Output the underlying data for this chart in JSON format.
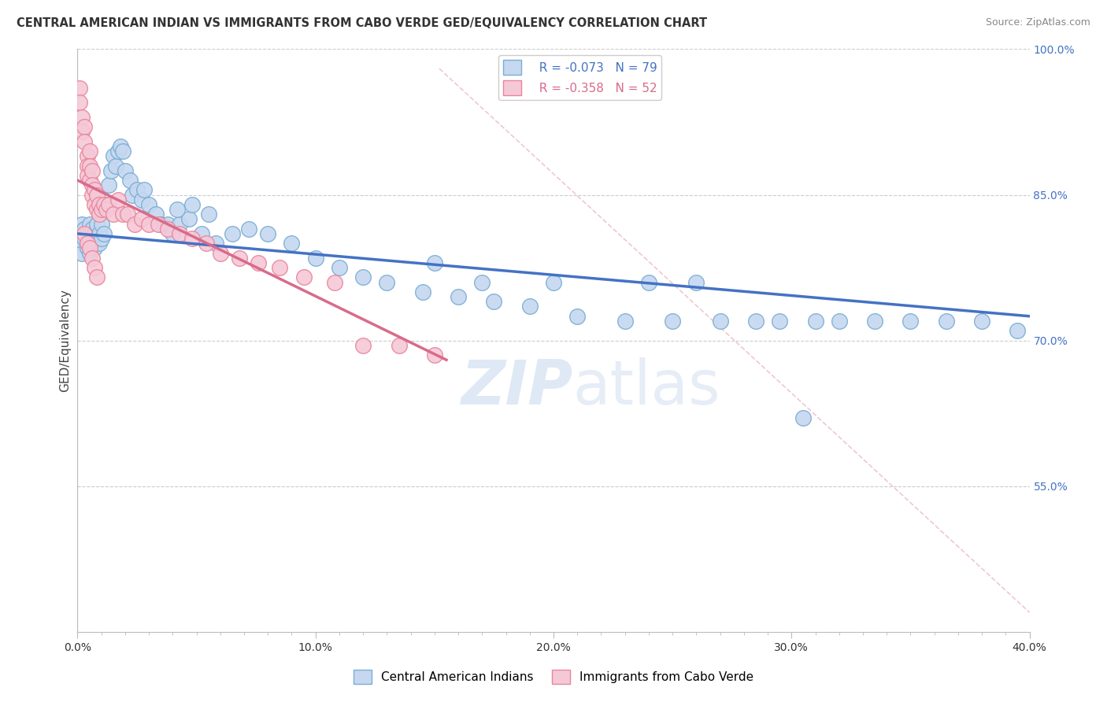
{
  "title": "CENTRAL AMERICAN INDIAN VS IMMIGRANTS FROM CABO VERDE GED/EQUIVALENCY CORRELATION CHART",
  "source": "Source: ZipAtlas.com",
  "ylabel_label": "GED/Equivalency",
  "legend_labels": [
    "Central American Indians",
    "Immigrants from Cabo Verde"
  ],
  "legend_r_blue": "R = -0.073",
  "legend_n_blue": "N = 79",
  "legend_r_pink": "R = -0.358",
  "legend_n_pink": "N = 52",
  "blue_color": "#c5d8f0",
  "blue_edge": "#7aadd4",
  "pink_color": "#f5c8d8",
  "pink_edge": "#e8869a",
  "blue_line_color": "#4472c4",
  "pink_line_color": "#d96b8a",
  "diag_line_color": "#e8b0c0",
  "watermark_color": "#c0d4ec",
  "x_min": 0.0,
  "x_max": 0.4,
  "y_min": 0.4,
  "y_max": 1.0,
  "blue_x": [
    0.001,
    0.001,
    0.002,
    0.002,
    0.003,
    0.003,
    0.004,
    0.004,
    0.005,
    0.005,
    0.005,
    0.006,
    0.006,
    0.007,
    0.007,
    0.008,
    0.008,
    0.009,
    0.009,
    0.01,
    0.01,
    0.011,
    0.012,
    0.013,
    0.014,
    0.015,
    0.016,
    0.017,
    0.018,
    0.019,
    0.02,
    0.022,
    0.023,
    0.025,
    0.027,
    0.028,
    0.03,
    0.033,
    0.035,
    0.038,
    0.04,
    0.043,
    0.047,
    0.052,
    0.058,
    0.065,
    0.072,
    0.08,
    0.09,
    0.1,
    0.11,
    0.12,
    0.13,
    0.145,
    0.16,
    0.175,
    0.19,
    0.21,
    0.23,
    0.25,
    0.27,
    0.285,
    0.295,
    0.31,
    0.32,
    0.335,
    0.35,
    0.365,
    0.38,
    0.395,
    0.055,
    0.048,
    0.042,
    0.15,
    0.17,
    0.2,
    0.24,
    0.26,
    0.305
  ],
  "blue_y": [
    0.8,
    0.81,
    0.82,
    0.79,
    0.805,
    0.815,
    0.795,
    0.81,
    0.8,
    0.79,
    0.82,
    0.8,
    0.815,
    0.795,
    0.81,
    0.82,
    0.805,
    0.8,
    0.81,
    0.82,
    0.805,
    0.81,
    0.84,
    0.86,
    0.875,
    0.89,
    0.88,
    0.895,
    0.9,
    0.895,
    0.875,
    0.865,
    0.85,
    0.855,
    0.845,
    0.855,
    0.84,
    0.83,
    0.82,
    0.82,
    0.81,
    0.82,
    0.825,
    0.81,
    0.8,
    0.81,
    0.815,
    0.81,
    0.8,
    0.785,
    0.775,
    0.765,
    0.76,
    0.75,
    0.745,
    0.74,
    0.735,
    0.725,
    0.72,
    0.72,
    0.72,
    0.72,
    0.72,
    0.72,
    0.72,
    0.72,
    0.72,
    0.72,
    0.72,
    0.71,
    0.83,
    0.84,
    0.835,
    0.78,
    0.76,
    0.76,
    0.76,
    0.76,
    0.62
  ],
  "pink_x": [
    0.001,
    0.001,
    0.002,
    0.002,
    0.003,
    0.003,
    0.004,
    0.004,
    0.004,
    0.005,
    0.005,
    0.005,
    0.006,
    0.006,
    0.006,
    0.007,
    0.007,
    0.008,
    0.008,
    0.009,
    0.009,
    0.01,
    0.011,
    0.012,
    0.013,
    0.015,
    0.017,
    0.019,
    0.021,
    0.024,
    0.027,
    0.03,
    0.034,
    0.038,
    0.043,
    0.048,
    0.054,
    0.06,
    0.068,
    0.076,
    0.085,
    0.095,
    0.108,
    0.12,
    0.135,
    0.15,
    0.003,
    0.004,
    0.005,
    0.006,
    0.007,
    0.008
  ],
  "pink_y": [
    0.96,
    0.945,
    0.93,
    0.915,
    0.92,
    0.905,
    0.89,
    0.88,
    0.87,
    0.895,
    0.88,
    0.865,
    0.875,
    0.86,
    0.85,
    0.855,
    0.84,
    0.85,
    0.835,
    0.84,
    0.83,
    0.835,
    0.84,
    0.835,
    0.84,
    0.83,
    0.845,
    0.83,
    0.83,
    0.82,
    0.825,
    0.82,
    0.82,
    0.815,
    0.81,
    0.805,
    0.8,
    0.79,
    0.785,
    0.78,
    0.775,
    0.765,
    0.76,
    0.695,
    0.695,
    0.685,
    0.81,
    0.8,
    0.795,
    0.785,
    0.775,
    0.765
  ],
  "blue_trend_x0": 0.0,
  "blue_trend_x1": 0.4,
  "blue_trend_y0": 0.81,
  "blue_trend_y1": 0.725,
  "pink_trend_x0": 0.0,
  "pink_trend_x1": 0.155,
  "pink_trend_y0": 0.865,
  "pink_trend_y1": 0.68,
  "yticks": [
    0.55,
    0.7,
    0.85,
    1.0
  ],
  "ytick_labels": [
    "55.0%",
    "70.0%",
    "85.0%",
    "100.0%"
  ],
  "xticks": [
    0.0,
    0.1,
    0.2,
    0.3,
    0.4
  ],
  "xtick_labels": [
    "0.0%",
    "10.0%",
    "20.0%",
    "30.0%",
    "40.0%"
  ]
}
